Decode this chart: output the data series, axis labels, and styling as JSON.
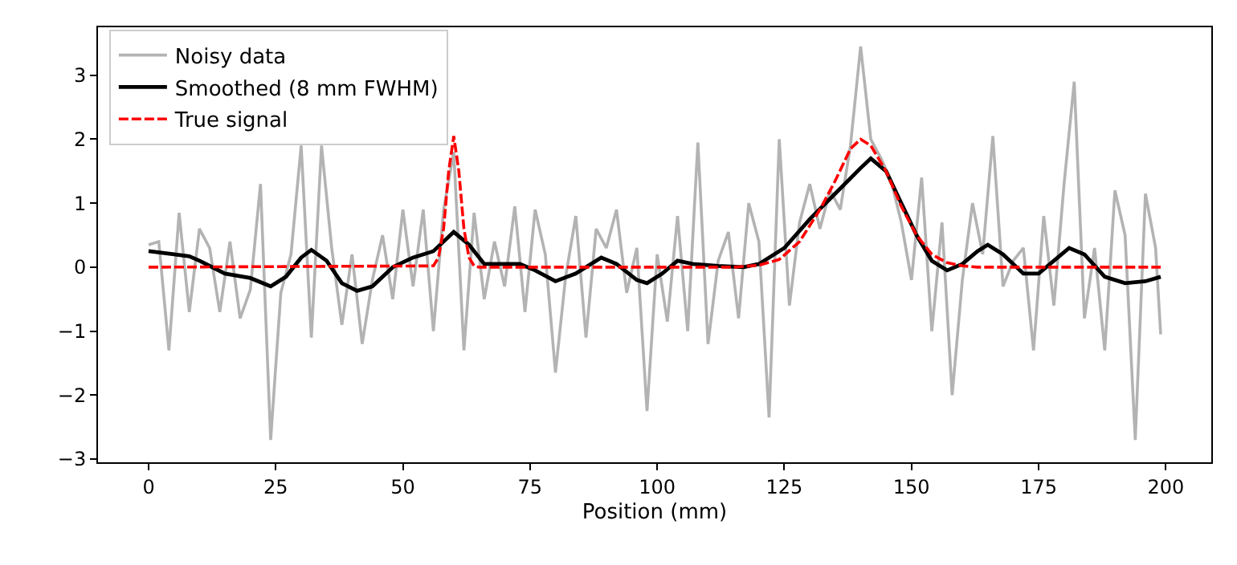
{
  "chart_data": {
    "type": "line",
    "xlabel": "Position (mm)",
    "xlim": [
      -9.95,
      208.95
    ],
    "ylim": [
      -3.05,
      3.75
    ],
    "xticks": [
      0,
      25,
      50,
      75,
      100,
      125,
      150,
      175,
      200
    ],
    "yticks": [
      {
        "value": -3,
        "label": "−3"
      },
      {
        "value": -2,
        "label": "−2"
      },
      {
        "value": -1,
        "label": "−1"
      },
      0,
      1,
      2,
      3
    ],
    "legend": "top left",
    "series": [
      {
        "name": "Noisy data",
        "color": "#b3b3b3",
        "line_style": "solid",
        "x": [
          0,
          2,
          4,
          6,
          8,
          10,
          12,
          14,
          16,
          18,
          20,
          22,
          24,
          26,
          28,
          30,
          32,
          34,
          36,
          38,
          40,
          42,
          44,
          46,
          48,
          50,
          52,
          54,
          56,
          58,
          60,
          62,
          64,
          66,
          68,
          70,
          72,
          74,
          76,
          78,
          80,
          82,
          84,
          86,
          88,
          90,
          92,
          94,
          96,
          98,
          100,
          102,
          104,
          106,
          108,
          110,
          112,
          114,
          116,
          118,
          120,
          122,
          124,
          126,
          128,
          130,
          132,
          134,
          136,
          138,
          140,
          142,
          144,
          146,
          148,
          150,
          152,
          154,
          156,
          158,
          160,
          162,
          164,
          166,
          168,
          170,
          172,
          174,
          176,
          178,
          180,
          182,
          184,
          186,
          188,
          190,
          192,
          194,
          196,
          198,
          199
        ],
        "values": [
          0.35,
          0.4,
          -1.3,
          0.85,
          -0.7,
          0.6,
          0.3,
          -0.7,
          0.4,
          -0.8,
          -0.35,
          1.3,
          -2.7,
          -0.4,
          0.2,
          1.9,
          -1.1,
          1.9,
          0.3,
          -0.9,
          0.2,
          -1.2,
          -0.2,
          0.5,
          -0.5,
          0.9,
          -0.3,
          0.9,
          -1.0,
          0.9,
          1.8,
          -1.3,
          0.85,
          -0.5,
          0.4,
          -0.3,
          0.95,
          -0.7,
          0.9,
          0.2,
          -1.65,
          -0.15,
          0.8,
          -1.1,
          0.6,
          0.3,
          0.9,
          -0.4,
          0.3,
          -2.25,
          0.2,
          -0.85,
          0.8,
          -1.0,
          1.95,
          -1.2,
          0.1,
          0.55,
          -0.8,
          1.0,
          0.4,
          -2.35,
          2.0,
          -0.6,
          0.7,
          1.3,
          0.6,
          1.2,
          0.9,
          1.9,
          3.45,
          2.0,
          1.7,
          1.35,
          0.7,
          -0.2,
          1.4,
          -1.0,
          0.7,
          -2.0,
          -0.2,
          1.0,
          0.2,
          2.05,
          -0.3,
          0.1,
          0.3,
          -1.3,
          0.8,
          -0.6,
          1.3,
          2.9,
          -0.8,
          0.3,
          -1.3,
          1.2,
          0.5,
          -2.7,
          1.15,
          0.3,
          -1.05
        ]
      },
      {
        "name": "Smoothed (8 mm FWHM)",
        "color": "#000000",
        "line_style": "solid",
        "x": [
          0,
          5,
          8,
          10,
          15,
          20,
          24,
          27,
          30,
          32,
          35,
          38,
          41,
          44,
          48,
          52,
          56,
          60,
          63,
          66,
          70,
          73,
          76,
          80,
          84,
          89,
          92,
          96,
          98,
          101,
          104,
          107,
          112,
          117,
          120,
          125,
          130,
          135,
          140,
          142,
          145,
          148,
          151,
          154,
          157,
          160,
          163,
          165,
          168,
          172,
          175,
          178,
          181,
          184,
          188,
          192,
          196,
          199
        ],
        "values": [
          0.25,
          0.2,
          0.17,
          0.1,
          -0.1,
          -0.17,
          -0.3,
          -0.15,
          0.15,
          0.27,
          0.1,
          -0.25,
          -0.37,
          -0.3,
          0.0,
          0.15,
          0.25,
          0.55,
          0.35,
          0.05,
          0.05,
          0.05,
          -0.05,
          -0.22,
          -0.1,
          0.15,
          0.05,
          -0.2,
          -0.25,
          -0.1,
          0.1,
          0.05,
          0.02,
          0.0,
          0.05,
          0.3,
          0.75,
          1.15,
          1.55,
          1.7,
          1.5,
          1.0,
          0.5,
          0.1,
          -0.05,
          0.05,
          0.25,
          0.35,
          0.2,
          -0.1,
          -0.1,
          0.1,
          0.3,
          0.2,
          -0.15,
          -0.25,
          -0.22,
          -0.15
        ]
      },
      {
        "name": "True signal",
        "color": "#ff0000",
        "line_style": "dashed",
        "x": [
          0,
          56,
          57,
          58,
          59,
          60,
          61,
          62,
          63,
          64,
          65,
          115,
          120,
          124,
          128,
          132,
          135,
          138,
          140,
          142,
          145,
          148,
          151,
          154,
          157,
          160,
          163,
          199
        ],
        "values": [
          0,
          0.02,
          0.15,
          0.6,
          1.5,
          2.05,
          1.5,
          0.6,
          0.15,
          0.02,
          0,
          0,
          0.03,
          0.12,
          0.4,
          0.9,
          1.35,
          1.85,
          2.0,
          1.9,
          1.5,
          0.95,
          0.5,
          0.2,
          0.07,
          0.02,
          0,
          0
        ]
      }
    ]
  }
}
